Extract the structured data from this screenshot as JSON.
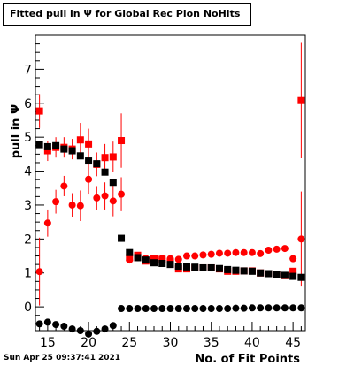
{
  "chart_data": {
    "type": "scatter",
    "title": "Fitted pull in Ψ for Global Rec Pion NoHits",
    "xlabel": "No. of Fit Points",
    "ylabel": "pull in Ψ",
    "xlim": [
      13.5,
      46.5
    ],
    "ylim": [
      -0.7,
      8.0
    ],
    "x_ticks": [
      15,
      20,
      25,
      30,
      35,
      40,
      45
    ],
    "y_ticks": [
      0,
      1,
      2,
      3,
      4,
      5,
      6,
      7
    ],
    "series": [
      {
        "color": "#ff0000",
        "marker": "circle",
        "x": [
          14,
          15,
          16,
          17,
          18,
          19,
          20,
          21,
          22,
          23,
          24,
          25,
          26,
          27,
          28,
          29,
          30,
          31,
          32,
          33,
          34,
          35,
          36,
          37,
          38,
          39,
          40,
          41,
          42,
          43,
          44,
          45,
          46
        ],
        "y": [
          1.04,
          2.47,
          3.1,
          3.56,
          3.0,
          2.98,
          3.76,
          3.21,
          3.27,
          3.12,
          3.32,
          1.38,
          1.45,
          1.43,
          1.4,
          1.43,
          1.42,
          1.4,
          1.5,
          1.5,
          1.53,
          1.55,
          1.58,
          1.58,
          1.6,
          1.6,
          1.6,
          1.57,
          1.67,
          1.7,
          1.72,
          1.42,
          2.0
        ],
        "err": [
          1.0,
          0.4,
          0.35,
          0.3,
          0.35,
          0.45,
          0.45,
          0.35,
          0.4,
          0.45,
          0.5,
          0.03,
          0.03,
          0.03,
          0.03,
          0.03,
          0.03,
          0.03,
          0.03,
          0.03,
          0.03,
          0.03,
          0.03,
          0.03,
          0.03,
          0.03,
          0.03,
          0.03,
          0.03,
          0.04,
          0.05,
          0.1,
          1.4
        ]
      },
      {
        "color": "#ff0000",
        "marker": "square",
        "x": [
          14,
          15,
          16,
          17,
          18,
          19,
          20,
          21,
          22,
          23,
          24,
          25,
          26,
          27,
          28,
          29,
          30,
          31,
          32,
          33,
          34,
          35,
          36,
          37,
          38,
          39,
          40,
          41,
          42,
          43,
          44,
          45,
          46
        ],
        "y": [
          5.77,
          4.6,
          4.7,
          4.7,
          4.65,
          4.92,
          4.8,
          4.2,
          4.4,
          4.42,
          4.9,
          1.45,
          1.52,
          1.35,
          1.42,
          1.4,
          1.32,
          1.12,
          1.12,
          1.15,
          1.15,
          1.15,
          1.12,
          1.05,
          1.05,
          1.06,
          1.06,
          1.0,
          0.98,
          0.95,
          0.92,
          1.05,
          6.08
        ],
        "err": [
          0.5,
          0.3,
          0.3,
          0.3,
          0.3,
          0.5,
          0.45,
          0.35,
          0.4,
          0.45,
          0.8,
          0.03,
          0.03,
          0.03,
          0.03,
          0.03,
          0.03,
          0.03,
          0.03,
          0.03,
          0.03,
          0.03,
          0.03,
          0.03,
          0.03,
          0.03,
          0.03,
          0.03,
          0.03,
          0.04,
          0.05,
          0.1,
          1.7
        ]
      },
      {
        "color": "#000000",
        "marker": "square",
        "x": [
          14,
          15,
          16,
          17,
          18,
          19,
          20,
          21,
          22,
          23,
          24,
          25,
          26,
          27,
          28,
          29,
          30,
          31,
          32,
          33,
          34,
          35,
          36,
          37,
          38,
          39,
          40,
          41,
          42,
          43,
          44,
          45,
          46
        ],
        "y": [
          4.78,
          4.72,
          4.75,
          4.65,
          4.6,
          4.45,
          4.3,
          4.22,
          3.97,
          3.67,
          2.02,
          1.6,
          1.45,
          1.38,
          1.3,
          1.28,
          1.25,
          1.2,
          1.18,
          1.17,
          1.15,
          1.15,
          1.13,
          1.1,
          1.08,
          1.06,
          1.05,
          1.0,
          0.98,
          0.95,
          0.93,
          0.9,
          0.87
        ],
        "err": [
          0,
          0,
          0,
          0,
          0,
          0,
          0,
          0,
          0,
          0,
          0,
          0,
          0,
          0,
          0,
          0,
          0,
          0,
          0,
          0,
          0,
          0,
          0,
          0,
          0,
          0,
          0,
          0,
          0,
          0,
          0,
          0,
          0
        ]
      },
      {
        "color": "#000000",
        "marker": "circle",
        "x": [
          14,
          15,
          16,
          17,
          18,
          19,
          20,
          21,
          22,
          23,
          24,
          25,
          26,
          27,
          28,
          29,
          30,
          31,
          32,
          33,
          34,
          35,
          36,
          37,
          38,
          39,
          40,
          41,
          42,
          43,
          44,
          45,
          46
        ],
        "y": [
          -0.5,
          -0.45,
          -0.52,
          -0.57,
          -0.65,
          -0.7,
          -0.8,
          -0.72,
          -0.65,
          -0.55,
          -0.05,
          -0.05,
          -0.05,
          -0.05,
          -0.05,
          -0.05,
          -0.05,
          -0.05,
          -0.05,
          -0.05,
          -0.05,
          -0.05,
          -0.05,
          -0.05,
          -0.04,
          -0.04,
          -0.03,
          -0.03,
          -0.03,
          -0.03,
          -0.03,
          -0.03,
          -0.03
        ],
        "err": [
          0,
          0,
          0,
          0,
          0,
          0,
          0,
          0,
          0,
          0,
          0,
          0,
          0,
          0,
          0,
          0,
          0,
          0,
          0,
          0,
          0,
          0,
          0,
          0,
          0,
          0,
          0,
          0,
          0,
          0,
          0,
          0,
          0
        ]
      }
    ]
  },
  "footer": "Sun Apr 25 09:37:41 2021"
}
